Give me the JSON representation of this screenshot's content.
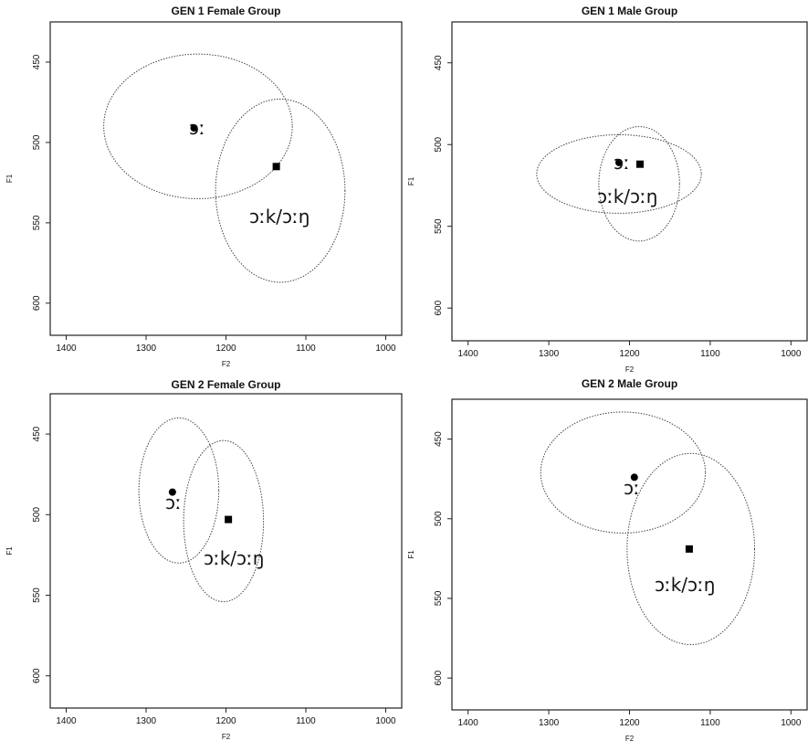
{
  "chart_data": [
    {
      "type": "scatter",
      "title": "GEN 1 Female Group",
      "xlabel": "F2",
      "ylabel": "F1",
      "xlim": [
        1420,
        980
      ],
      "ylim": [
        425,
        620
      ],
      "x_ticks": [
        1400,
        1300,
        1200,
        1100,
        1000
      ],
      "y_ticks": [
        450,
        500,
        550,
        600
      ],
      "grid": false,
      "series": [
        {
          "name": "ɔː",
          "marker": "circle",
          "point": {
            "x": 1240,
            "y": 491
          },
          "ellipse": {
            "cx": 1235,
            "cy": 490,
            "rx": 118,
            "ry": 45
          }
        },
        {
          "name": "ɔːk/ɔːŋ",
          "marker": "square",
          "point": {
            "x": 1137,
            "y": 515
          },
          "ellipse": {
            "cx": 1132,
            "cy": 530,
            "rx": 81,
            "ry": 57
          }
        }
      ]
    },
    {
      "type": "scatter",
      "title": "GEN 1 Male Group",
      "xlabel": "F2",
      "ylabel": "F1",
      "xlim": [
        1420,
        980
      ],
      "ylim": [
        425,
        620
      ],
      "x_ticks": [
        1400,
        1300,
        1200,
        1100,
        1000
      ],
      "y_ticks": [
        450,
        500,
        550,
        600
      ],
      "grid": false,
      "series": [
        {
          "name": "ɔː",
          "marker": "circle",
          "point": {
            "x": 1213,
            "y": 511
          },
          "ellipse": {
            "cx": 1213,
            "cy": 518,
            "rx": 102,
            "ry": 24
          }
        },
        {
          "name": "ɔːk/ɔːŋ",
          "marker": "square",
          "point": {
            "x": 1187,
            "y": 512
          },
          "ellipse": {
            "cx": 1188,
            "cy": 524,
            "rx": 50,
            "ry": 35
          }
        }
      ]
    },
    {
      "type": "scatter",
      "title": "GEN 2 Female Group",
      "xlabel": "F2",
      "ylabel": "F1",
      "xlim": [
        1420,
        980
      ],
      "ylim": [
        425,
        620
      ],
      "x_ticks": [
        1400,
        1300,
        1200,
        1100,
        1000
      ],
      "y_ticks": [
        450,
        500,
        550,
        600
      ],
      "grid": false,
      "series": [
        {
          "name": "ɔː",
          "marker": "circle",
          "point": {
            "x": 1267,
            "y": 486
          },
          "ellipse": {
            "cx": 1259,
            "cy": 485,
            "rx": 50,
            "ry": 45
          }
        },
        {
          "name": "ɔːk/ɔːŋ",
          "marker": "square",
          "point": {
            "x": 1197,
            "y": 503
          },
          "ellipse": {
            "cx": 1203,
            "cy": 504,
            "rx": 50,
            "ry": 50
          }
        }
      ]
    },
    {
      "type": "scatter",
      "title": "GEN 2 Male Group",
      "xlabel": "F2",
      "ylabel": "F1",
      "xlim": [
        1420,
        980
      ],
      "ylim": [
        425,
        620
      ],
      "x_ticks": [
        1400,
        1300,
        1200,
        1100,
        1000
      ],
      "y_ticks": [
        450,
        500,
        550,
        600
      ],
      "grid": false,
      "series": [
        {
          "name": "ɔː",
          "marker": "circle",
          "point": {
            "x": 1194,
            "y": 474
          },
          "ellipse": {
            "cx": 1208,
            "cy": 471,
            "rx": 102,
            "ry": 38
          }
        },
        {
          "name": "ɔːk/ɔːŋ",
          "marker": "square",
          "point": {
            "x": 1126,
            "y": 519
          },
          "ellipse": {
            "cx": 1124,
            "cy": 519,
            "rx": 79,
            "ry": 60
          }
        }
      ]
    }
  ]
}
